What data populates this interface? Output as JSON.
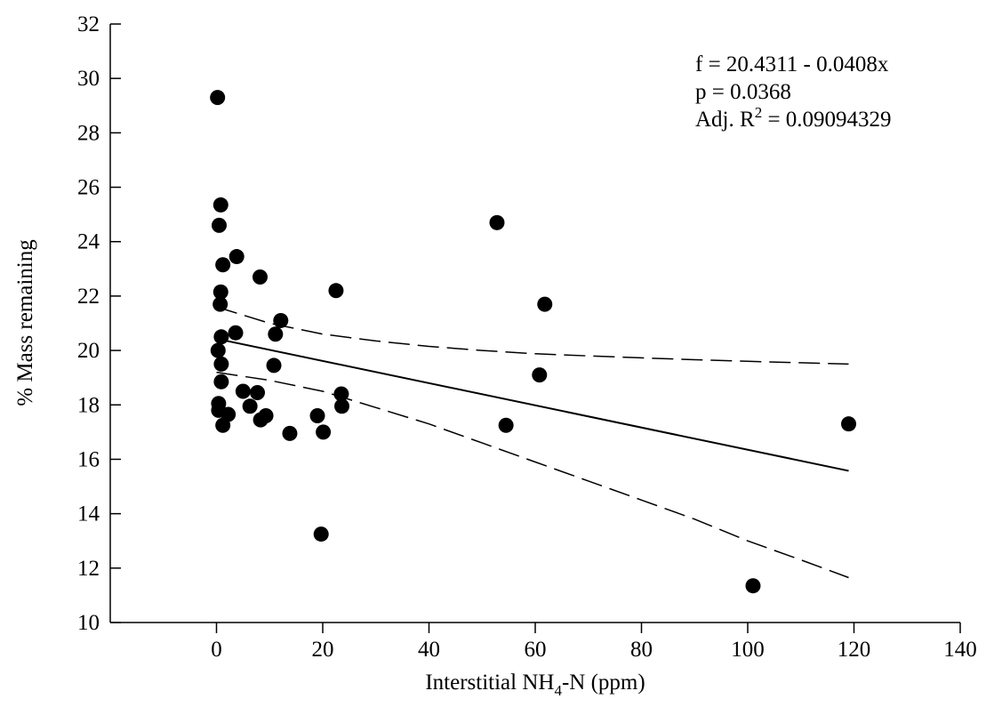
{
  "chart_data": {
    "type": "scatter",
    "xlim": [
      -20,
      140
    ],
    "ylim": [
      10,
      32
    ],
    "x_ticks": [
      0,
      20,
      40,
      60,
      80,
      100,
      120,
      140
    ],
    "y_ticks": [
      10,
      12,
      14,
      16,
      18,
      20,
      22,
      24,
      26,
      28,
      30,
      32
    ],
    "xlabel": {
      "prefix": "Interstitial NH",
      "sub": "4",
      "suffix": "-N (ppm)"
    },
    "ylabel": "% Mass remaining",
    "grid": false,
    "points": [
      [
        0.2,
        29.3
      ],
      [
        0.8,
        25.35
      ],
      [
        0.5,
        24.6
      ],
      [
        1.2,
        23.15
      ],
      [
        3.8,
        23.45
      ],
      [
        0.8,
        22.15
      ],
      [
        0.7,
        21.7
      ],
      [
        0.9,
        20.5
      ],
      [
        3.6,
        20.65
      ],
      [
        0.3,
        20.0
      ],
      [
        0.9,
        19.5
      ],
      [
        0.9,
        18.85
      ],
      [
        0.4,
        18.05
      ],
      [
        0.4,
        17.8
      ],
      [
        1.2,
        17.25
      ],
      [
        2.2,
        17.65
      ],
      [
        5.0,
        18.5
      ],
      [
        6.3,
        17.95
      ],
      [
        7.7,
        18.45
      ],
      [
        8.3,
        17.45
      ],
      [
        9.3,
        17.6
      ],
      [
        8.2,
        22.7
      ],
      [
        11.1,
        20.6
      ],
      [
        12.1,
        21.1
      ],
      [
        10.8,
        19.45
      ],
      [
        13.8,
        16.95
      ],
      [
        19.0,
        17.6
      ],
      [
        20.1,
        17.0
      ],
      [
        22.5,
        22.2
      ],
      [
        23.5,
        18.4
      ],
      [
        23.6,
        17.95
      ],
      [
        19.7,
        13.25
      ],
      [
        52.8,
        24.7
      ],
      [
        54.5,
        17.25
      ],
      [
        60.8,
        19.1
      ],
      [
        61.8,
        21.7
      ],
      [
        101.0,
        11.35
      ],
      [
        119.0,
        17.3
      ]
    ],
    "fit": {
      "intercept": 20.4311,
      "slope": -0.0408,
      "x_range": [
        0,
        119
      ]
    },
    "ci_upper": [
      [
        0,
        21.6
      ],
      [
        10,
        21.0
      ],
      [
        20,
        20.6
      ],
      [
        30,
        20.35
      ],
      [
        40,
        20.15
      ],
      [
        50,
        20.0
      ],
      [
        60,
        19.88
      ],
      [
        70,
        19.8
      ],
      [
        80,
        19.73
      ],
      [
        90,
        19.66
      ],
      [
        100,
        19.6
      ],
      [
        110,
        19.55
      ],
      [
        119,
        19.5
      ]
    ],
    "ci_lower": [
      [
        0,
        19.2
      ],
      [
        10,
        18.9
      ],
      [
        20,
        18.5
      ],
      [
        30,
        17.9
      ],
      [
        40,
        17.3
      ],
      [
        50,
        16.6
      ],
      [
        60,
        15.9
      ],
      [
        70,
        15.2
      ],
      [
        80,
        14.5
      ],
      [
        90,
        13.8
      ],
      [
        100,
        13.0
      ],
      [
        110,
        12.3
      ],
      [
        119,
        11.65
      ]
    ],
    "annotation": {
      "line1": "f = 20.4311 - 0.0408x",
      "line2": "p = 0.0368",
      "line3_prefix": "Adj. R",
      "line3_sup": "2",
      "line3_suffix": " = 0.09094329"
    }
  }
}
